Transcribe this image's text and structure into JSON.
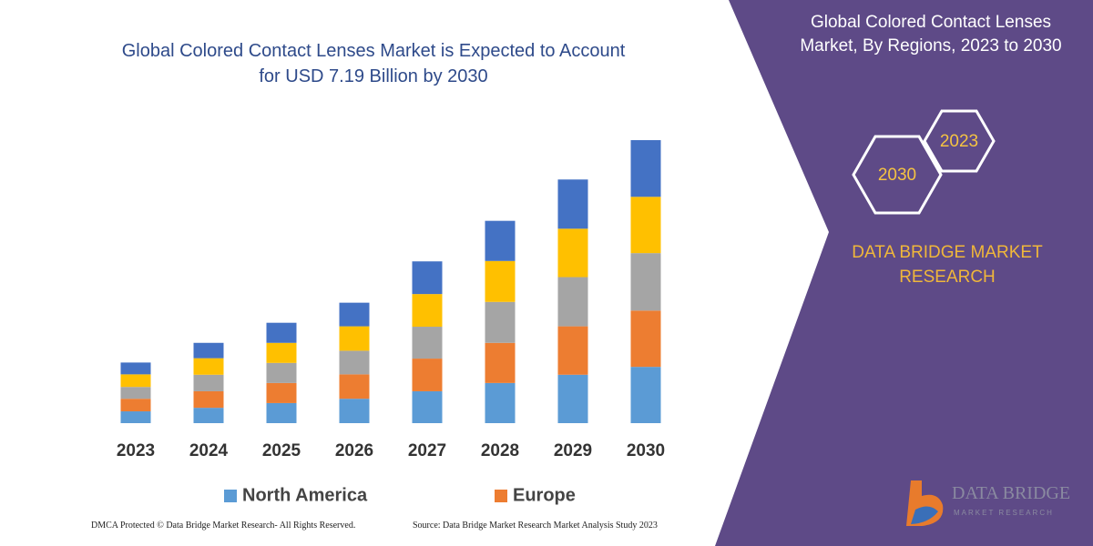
{
  "chart_data": {
    "type": "stacked_bar",
    "title": "Global Colored Contact Lenses Market is Expected to Account for USD 7.19 Billion by 2030",
    "categories": [
      "2023",
      "2024",
      "2025",
      "2026",
      "2027",
      "2028",
      "2029",
      "2030"
    ],
    "series": [
      {
        "name": "North America",
        "color": "#5b9bd5",
        "values": [
          0.3,
          0.39,
          0.51,
          0.62,
          0.81,
          1.02,
          1.23,
          1.43
        ]
      },
      {
        "name": "Europe",
        "color": "#ed7d31",
        "values": [
          0.32,
          0.42,
          0.51,
          0.62,
          0.83,
          1.02,
          1.23,
          1.43
        ]
      },
      {
        "color": "#a5a5a5",
        "values": [
          0.3,
          0.42,
          0.51,
          0.6,
          0.81,
          1.04,
          1.25,
          1.46
        ]
      },
      {
        "color": "#ffc000",
        "values": [
          0.32,
          0.42,
          0.51,
          0.62,
          0.83,
          1.04,
          1.23,
          1.43
        ]
      },
      {
        "color": "#4472c4",
        "values": [
          0.3,
          0.39,
          0.51,
          0.6,
          0.83,
          1.02,
          1.25,
          1.44
        ]
      }
    ]
  },
  "side_panel": {
    "title": "Global Colored Contact Lenses Market, By Regions, 2023 to 2030",
    "hex_labels": [
      "2023",
      "2030"
    ],
    "brand": "DATA BRIDGE MARKET RESEARCH",
    "logo": {
      "name": "DATA BRIDGE",
      "tagline": "MARKET RESEARCH"
    }
  },
  "footer": {
    "left": "DMCA Protected © Data Bridge Market Research- All Rights Reserved.",
    "right": "Source: Data Bridge Market Research Market Analysis Study 2023"
  }
}
